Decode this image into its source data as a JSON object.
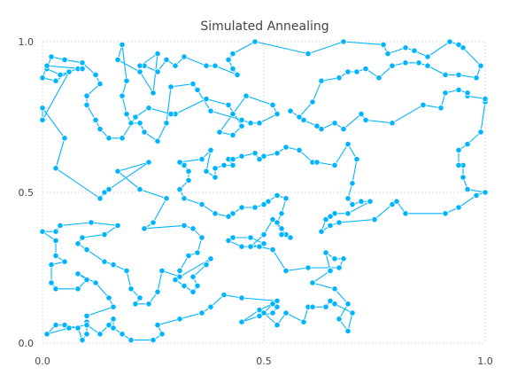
{
  "chart_data": {
    "type": "line",
    "title": "Simulated Annealing",
    "xlabel": "",
    "ylabel": "",
    "xlim": [
      0,
      1
    ],
    "ylim": [
      0,
      1
    ],
    "x_ticks": [
      "0.0",
      "0.5",
      "1.0"
    ],
    "y_ticks": [
      "0.0",
      "0.5",
      "1.0"
    ],
    "grid": true,
    "legend": "none",
    "color": "#00b4ff",
    "series": [
      {
        "name": "",
        "closed": true,
        "points": [
          [
            0.0,
            0.74
          ],
          [
            0.0,
            0.78
          ],
          [
            0.05,
            0.68
          ],
          [
            0.03,
            0.58
          ],
          [
            0.13,
            0.48
          ],
          [
            0.14,
            0.5
          ],
          [
            0.15,
            0.51
          ],
          [
            0.24,
            0.6
          ],
          [
            0.17,
            0.57
          ],
          [
            0.22,
            0.51
          ],
          [
            0.28,
            0.48
          ],
          [
            0.25,
            0.4
          ],
          [
            0.23,
            0.38
          ],
          [
            0.32,
            0.39
          ],
          [
            0.34,
            0.38
          ],
          [
            0.36,
            0.35
          ],
          [
            0.35,
            0.3
          ],
          [
            0.33,
            0.29
          ],
          [
            0.31,
            0.24
          ],
          [
            0.3,
            0.21
          ],
          [
            0.32,
            0.19
          ],
          [
            0.34,
            0.17
          ],
          [
            0.35,
            0.19
          ],
          [
            0.34,
            0.22
          ],
          [
            0.37,
            0.26
          ],
          [
            0.38,
            0.28
          ],
          [
            0.31,
            0.22
          ],
          [
            0.27,
            0.24
          ],
          [
            0.26,
            0.17
          ],
          [
            0.24,
            0.13
          ],
          [
            0.21,
            0.13
          ],
          [
            0.22,
            0.15
          ],
          [
            0.2,
            0.18
          ],
          [
            0.19,
            0.24
          ],
          [
            0.16,
            0.26
          ],
          [
            0.14,
            0.27
          ],
          [
            0.1,
            0.31
          ],
          [
            0.08,
            0.33
          ],
          [
            0.09,
            0.35
          ],
          [
            0.14,
            0.36
          ],
          [
            0.17,
            0.39
          ],
          [
            0.11,
            0.4
          ],
          [
            0.04,
            0.39
          ],
          [
            0.03,
            0.37
          ],
          [
            0.0,
            0.37
          ],
          [
            0.03,
            0.34
          ],
          [
            0.03,
            0.29
          ],
          [
            0.05,
            0.27
          ],
          [
            0.02,
            0.26
          ],
          [
            0.02,
            0.2
          ],
          [
            0.03,
            0.18
          ],
          [
            0.08,
            0.18
          ],
          [
            0.1,
            0.21
          ],
          [
            0.08,
            0.23
          ],
          [
            0.12,
            0.2
          ],
          [
            0.15,
            0.15
          ],
          [
            0.16,
            0.12
          ],
          [
            0.1,
            0.09
          ],
          [
            0.1,
            0.07
          ],
          [
            0.1,
            0.03
          ],
          [
            0.09,
            0.01
          ],
          [
            0.08,
            0.05
          ],
          [
            0.05,
            0.06
          ],
          [
            0.03,
            0.06
          ],
          [
            0.01,
            0.03
          ],
          [
            0.06,
            0.05
          ],
          [
            0.1,
            0.06
          ],
          [
            0.13,
            0.03
          ],
          [
            0.15,
            0.06
          ],
          [
            0.16,
            0.08
          ],
          [
            0.16,
            0.05
          ],
          [
            0.18,
            0.03
          ],
          [
            0.2,
            0.01
          ],
          [
            0.25,
            0.01
          ],
          [
            0.27,
            0.03
          ],
          [
            0.26,
            0.06
          ],
          [
            0.31,
            0.08
          ],
          [
            0.36,
            0.1
          ],
          [
            0.38,
            0.12
          ],
          [
            0.41,
            0.16
          ],
          [
            0.45,
            0.15
          ],
          [
            0.53,
            0.14
          ],
          [
            0.53,
            0.12
          ],
          [
            0.52,
            0.1
          ],
          [
            0.49,
            0.09
          ],
          [
            0.45,
            0.07
          ],
          [
            0.49,
            0.11
          ],
          [
            0.52,
            0.13
          ],
          [
            0.5,
            0.1
          ],
          [
            0.53,
            0.06
          ],
          [
            0.55,
            0.1
          ],
          [
            0.59,
            0.07
          ],
          [
            0.6,
            0.12
          ],
          [
            0.61,
            0.12
          ],
          [
            0.64,
            0.12
          ],
          [
            0.65,
            0.14
          ],
          [
            0.66,
            0.13
          ],
          [
            0.7,
            0.1
          ],
          [
            0.69,
            0.04
          ],
          [
            0.67,
            0.08
          ],
          [
            0.69,
            0.13
          ],
          [
            0.66,
            0.18
          ],
          [
            0.61,
            0.2
          ],
          [
            0.65,
            0.24
          ],
          [
            0.64,
            0.3
          ],
          [
            0.66,
            0.28
          ],
          [
            0.68,
            0.28
          ],
          [
            0.67,
            0.25
          ],
          [
            0.6,
            0.25
          ],
          [
            0.55,
            0.24
          ],
          [
            0.52,
            0.31
          ],
          [
            0.49,
            0.32
          ],
          [
            0.45,
            0.32
          ],
          [
            0.42,
            0.34
          ],
          [
            0.43,
            0.35
          ],
          [
            0.47,
            0.35
          ],
          [
            0.5,
            0.33
          ],
          [
            0.47,
            0.32
          ],
          [
            0.5,
            0.36
          ],
          [
            0.52,
            0.41
          ],
          [
            0.55,
            0.36
          ],
          [
            0.56,
            0.35
          ],
          [
            0.54,
            0.36
          ],
          [
            0.54,
            0.38
          ],
          [
            0.53,
            0.4
          ],
          [
            0.54,
            0.43
          ],
          [
            0.55,
            0.48
          ],
          [
            0.53,
            0.49
          ],
          [
            0.51,
            0.47
          ],
          [
            0.5,
            0.46
          ],
          [
            0.48,
            0.45
          ],
          [
            0.45,
            0.45
          ],
          [
            0.43,
            0.43
          ],
          [
            0.42,
            0.42
          ],
          [
            0.39,
            0.43
          ],
          [
            0.36,
            0.46
          ],
          [
            0.32,
            0.48
          ],
          [
            0.31,
            0.51
          ],
          [
            0.33,
            0.54
          ],
          [
            0.33,
            0.57
          ],
          [
            0.32,
            0.59
          ],
          [
            0.31,
            0.6
          ],
          [
            0.36,
            0.61
          ],
          [
            0.38,
            0.64
          ],
          [
            0.37,
            0.57
          ],
          [
            0.39,
            0.55
          ],
          [
            0.39,
            0.58
          ],
          [
            0.41,
            0.59
          ],
          [
            0.43,
            0.59
          ],
          [
            0.42,
            0.61
          ],
          [
            0.43,
            0.61
          ],
          [
            0.45,
            0.62
          ],
          [
            0.48,
            0.63
          ],
          [
            0.49,
            0.61
          ],
          [
            0.5,
            0.62
          ],
          [
            0.53,
            0.63
          ],
          [
            0.55,
            0.65
          ],
          [
            0.58,
            0.64
          ],
          [
            0.61,
            0.6
          ],
          [
            0.62,
            0.6
          ],
          [
            0.66,
            0.59
          ],
          [
            0.69,
            0.66
          ],
          [
            0.71,
            0.61
          ],
          [
            0.7,
            0.53
          ],
          [
            0.69,
            0.48
          ],
          [
            0.7,
            0.46
          ],
          [
            0.72,
            0.47
          ],
          [
            0.74,
            0.47
          ],
          [
            0.69,
            0.43
          ],
          [
            0.66,
            0.43
          ],
          [
            0.65,
            0.42
          ],
          [
            0.64,
            0.41
          ],
          [
            0.63,
            0.37
          ],
          [
            0.65,
            0.39
          ],
          [
            0.67,
            0.4
          ],
          [
            0.75,
            0.41
          ],
          [
            0.79,
            0.46
          ],
          [
            0.8,
            0.47
          ],
          [
            0.82,
            0.43
          ],
          [
            0.91,
            0.43
          ],
          [
            0.94,
            0.45
          ],
          [
            0.98,
            0.49
          ],
          [
            1.0,
            0.5
          ],
          [
            0.96,
            0.51
          ],
          [
            0.95,
            0.55
          ],
          [
            0.95,
            0.59
          ],
          [
            0.94,
            0.59
          ],
          [
            0.94,
            0.64
          ],
          [
            0.96,
            0.66
          ],
          [
            0.99,
            0.7
          ],
          [
            1.0,
            0.8
          ],
          [
            1.0,
            0.81
          ],
          [
            0.96,
            0.82
          ],
          [
            0.96,
            0.83
          ],
          [
            0.94,
            0.84
          ],
          [
            0.91,
            0.83
          ],
          [
            0.9,
            0.78
          ],
          [
            0.86,
            0.79
          ],
          [
            0.79,
            0.73
          ],
          [
            0.73,
            0.74
          ],
          [
            0.72,
            0.76
          ],
          [
            0.68,
            0.71
          ],
          [
            0.66,
            0.73
          ],
          [
            0.63,
            0.71
          ],
          [
            0.62,
            0.72
          ],
          [
            0.59,
            0.74
          ],
          [
            0.56,
            0.77
          ],
          [
            0.58,
            0.75
          ],
          [
            0.61,
            0.8
          ],
          [
            0.63,
            0.87
          ],
          [
            0.67,
            0.88
          ],
          [
            0.69,
            0.9
          ],
          [
            0.71,
            0.9
          ],
          [
            0.73,
            0.91
          ],
          [
            0.76,
            0.88
          ],
          [
            0.79,
            0.92
          ],
          [
            0.82,
            0.93
          ],
          [
            0.85,
            0.93
          ],
          [
            0.87,
            0.92
          ],
          [
            0.91,
            0.89
          ],
          [
            0.94,
            0.89
          ],
          [
            0.98,
            0.88
          ],
          [
            0.99,
            0.92
          ],
          [
            0.95,
            0.98
          ],
          [
            0.94,
            0.99
          ],
          [
            0.92,
            1.0
          ],
          [
            0.87,
            0.95
          ],
          [
            0.84,
            0.97
          ],
          [
            0.82,
            0.98
          ],
          [
            0.78,
            0.96
          ],
          [
            0.77,
            0.99
          ],
          [
            0.68,
            1.0
          ],
          [
            0.6,
            0.96
          ],
          [
            0.48,
            1.0
          ],
          [
            0.43,
            0.96
          ],
          [
            0.42,
            0.94
          ],
          [
            0.43,
            0.91
          ],
          [
            0.44,
            0.89
          ],
          [
            0.39,
            0.92
          ],
          [
            0.37,
            0.92
          ],
          [
            0.32,
            0.95
          ],
          [
            0.3,
            0.92
          ],
          [
            0.28,
            0.94
          ],
          [
            0.26,
            0.9
          ],
          [
            0.23,
            0.92
          ],
          [
            0.22,
            0.92
          ],
          [
            0.26,
            0.96
          ],
          [
            0.25,
            0.83
          ],
          [
            0.22,
            0.9
          ],
          [
            0.17,
            0.94
          ],
          [
            0.18,
            0.99
          ],
          [
            0.19,
            0.87
          ],
          [
            0.18,
            0.82
          ],
          [
            0.19,
            0.76
          ],
          [
            0.2,
            0.73
          ],
          [
            0.22,
            0.73
          ],
          [
            0.23,
            0.7
          ],
          [
            0.26,
            0.67
          ],
          [
            0.28,
            0.73
          ],
          [
            0.29,
            0.85
          ],
          [
            0.34,
            0.86
          ],
          [
            0.35,
            0.84
          ],
          [
            0.38,
            0.77
          ],
          [
            0.45,
            0.74
          ],
          [
            0.47,
            0.73
          ],
          [
            0.49,
            0.73
          ],
          [
            0.53,
            0.76
          ],
          [
            0.52,
            0.79
          ],
          [
            0.46,
            0.82
          ],
          [
            0.43,
            0.76
          ],
          [
            0.4,
            0.7
          ],
          [
            0.43,
            0.69
          ],
          [
            0.45,
            0.72
          ],
          [
            0.42,
            0.79
          ],
          [
            0.37,
            0.81
          ],
          [
            0.3,
            0.76
          ],
          [
            0.29,
            0.76
          ],
          [
            0.24,
            0.78
          ],
          [
            0.21,
            0.75
          ],
          [
            0.18,
            0.68
          ],
          [
            0.15,
            0.68
          ],
          [
            0.13,
            0.71
          ],
          [
            0.12,
            0.74
          ],
          [
            0.1,
            0.79
          ],
          [
            0.1,
            0.82
          ],
          [
            0.13,
            0.86
          ],
          [
            0.12,
            0.89
          ],
          [
            0.09,
            0.93
          ],
          [
            0.05,
            0.94
          ],
          [
            0.02,
            0.95
          ],
          [
            0.01,
            0.91
          ],
          [
            0.04,
            0.89
          ],
          [
            0.08,
            0.91
          ],
          [
            0.09,
            0.91
          ],
          [
            0.01,
            0.92
          ],
          [
            0.0,
            0.88
          ],
          [
            0.03,
            0.87
          ],
          [
            0.06,
            0.9
          ]
        ]
      }
    ]
  }
}
